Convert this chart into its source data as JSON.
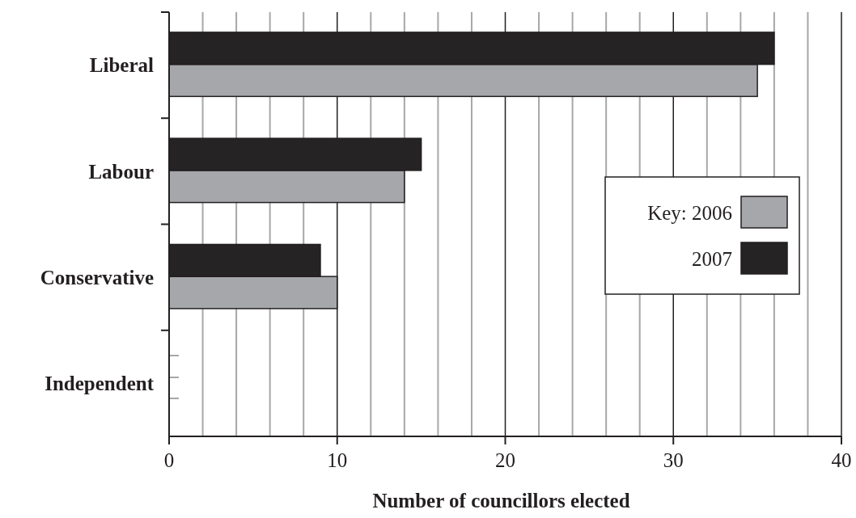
{
  "chart_data": {
    "type": "bar",
    "orientation": "horizontal",
    "xlabel": "Number of councillors elected",
    "legend_title": "Key:",
    "categories": [
      "Liberal",
      "Labour",
      "Conservative",
      "Independent"
    ],
    "series": [
      {
        "name": "2006",
        "color": "#a6a7ab",
        "values": [
          35,
          14,
          10,
          null
        ]
      },
      {
        "name": "2007",
        "color": "#252324",
        "values": [
          36,
          15,
          9,
          null
        ]
      }
    ],
    "xlim": [
      0,
      40
    ],
    "xticks": [
      0,
      {
        "value": 2,
        "label": null
      },
      {
        "value": 4,
        "label": null
      },
      {
        "value": 6,
        "label": null
      },
      {
        "value": 8,
        "label": null
      },
      10,
      {
        "value": 12,
        "label": null
      },
      {
        "value": 14,
        "label": null
      },
      {
        "value": 16,
        "label": null
      },
      {
        "value": 18,
        "label": null
      },
      20,
      {
        "value": 22,
        "label": null
      },
      {
        "value": 24,
        "label": null
      },
      {
        "value": 26,
        "label": null
      },
      {
        "value": 28,
        "label": null
      },
      30,
      {
        "value": 32,
        "label": null
      },
      {
        "value": 34,
        "label": null
      },
      {
        "value": 36,
        "label": null
      },
      {
        "value": 38,
        "label": null
      },
      40
    ],
    "grid": "x",
    "legend": "right"
  }
}
